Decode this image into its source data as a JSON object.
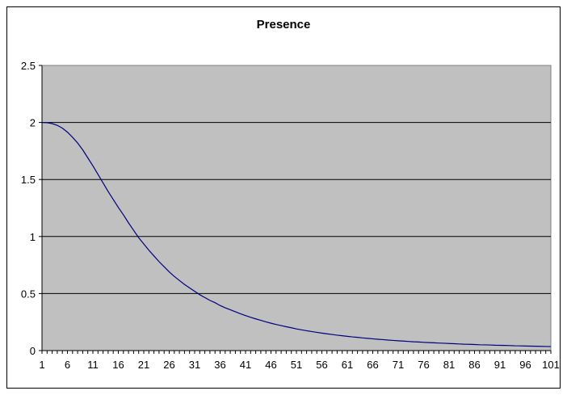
{
  "chart_data": {
    "type": "line",
    "title": "Presence",
    "xlabel": "",
    "ylabel": "",
    "x_range": [
      1,
      101
    ],
    "x_tick_labels": [
      "1",
      "6",
      "11",
      "16",
      "21",
      "26",
      "31",
      "36",
      "41",
      "46",
      "51",
      "56",
      "61",
      "66",
      "71",
      "76",
      "81",
      "86",
      "91",
      "96",
      "101"
    ],
    "ylim": [
      0,
      2.5
    ],
    "y_tick_labels": [
      "0",
      "0.5",
      "1",
      "1.5",
      "2",
      "2.5"
    ],
    "y_tick_values": [
      0,
      0.5,
      1,
      1.5,
      2,
      2.5
    ],
    "grid": "horizontal",
    "legend": "none",
    "plot_background": "#c0c0c0",
    "line_color": "#000080",
    "series": [
      {
        "values": [
          2.0,
          1.998,
          1.99,
          1.975,
          1.95,
          1.915,
          1.87,
          1.82,
          1.76,
          1.69,
          1.62,
          1.545,
          1.47,
          1.395,
          1.325,
          1.255,
          1.19,
          1.12,
          1.055,
          0.99,
          0.935,
          0.88,
          0.83,
          0.78,
          0.735,
          0.69,
          0.65,
          0.615,
          0.58,
          0.55,
          0.52,
          0.49,
          0.465,
          0.44,
          0.42,
          0.395,
          0.375,
          0.358,
          0.34,
          0.323,
          0.307,
          0.292,
          0.278,
          0.265,
          0.252,
          0.24,
          0.229,
          0.219,
          0.209,
          0.2,
          0.19,
          0.182,
          0.174,
          0.167,
          0.16,
          0.153,
          0.147,
          0.141,
          0.135,
          0.13,
          0.125,
          0.12,
          0.116,
          0.111,
          0.107,
          0.103,
          0.099,
          0.096,
          0.092,
          0.089,
          0.086,
          0.083,
          0.08,
          0.077,
          0.075,
          0.072,
          0.07,
          0.068,
          0.066,
          0.064,
          0.062,
          0.06,
          0.058,
          0.056,
          0.055,
          0.053,
          0.051,
          0.05,
          0.049,
          0.047,
          0.046,
          0.045,
          0.044,
          0.042,
          0.041,
          0.04,
          0.039,
          0.038,
          0.037,
          0.036,
          0.035
        ]
      }
    ]
  }
}
